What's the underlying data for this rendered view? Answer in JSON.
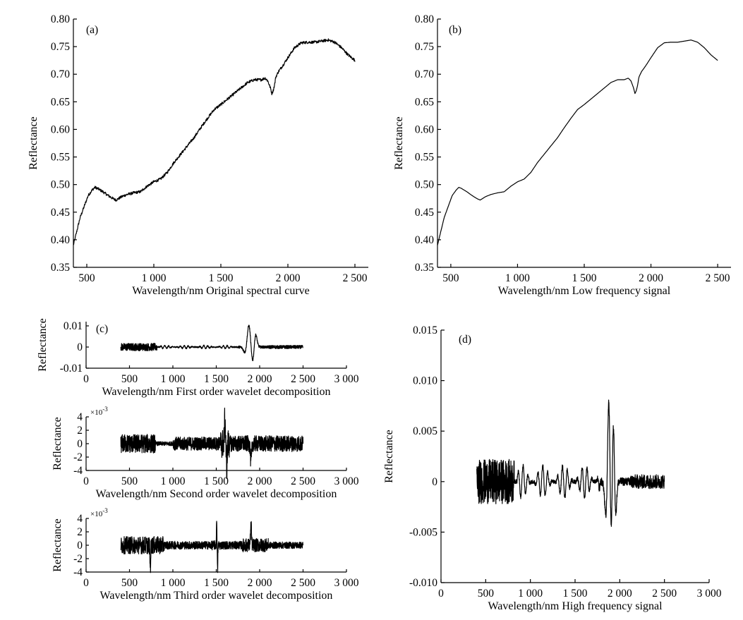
{
  "chart_data": [
    {
      "id": "a",
      "type": "line",
      "panel_label": "(a)",
      "xlabel": "Wavelength/nm Original spectral curve",
      "ylabel": "Reflectance",
      "xlim": [
        400,
        2600
      ],
      "ylim": [
        0.35,
        0.8
      ],
      "xticks": [
        500,
        1000,
        1500,
        2000,
        2500
      ],
      "xtick_labels": [
        "500",
        "1 000",
        "1 500",
        "2 000",
        "2 500"
      ],
      "yticks": [
        0.35,
        0.4,
        0.45,
        0.5,
        0.55,
        0.6,
        0.65,
        0.7,
        0.75,
        0.8
      ],
      "ytick_labels": [
        "0.35",
        "0.40",
        "0.45",
        "0.50",
        "0.55",
        "0.60",
        "0.65",
        "0.70",
        "0.75",
        "0.80"
      ],
      "noise": 0.0025,
      "series": [
        {
          "x": [
            400,
            420,
            450,
            480,
            510,
            540,
            560,
            580,
            620,
            660,
            700,
            720,
            760,
            800,
            850,
            900,
            950,
            1000,
            1050,
            1100,
            1150,
            1200,
            1250,
            1300,
            1350,
            1400,
            1450,
            1500,
            1550,
            1600,
            1650,
            1700,
            1750,
            1800,
            1830,
            1850,
            1870,
            1880,
            1890,
            1900,
            1910,
            1930,
            1960,
            2000,
            2050,
            2100,
            2150,
            2200,
            2250,
            2300,
            2350,
            2400,
            2450,
            2500
          ],
          "y": [
            0.39,
            0.41,
            0.44,
            0.46,
            0.48,
            0.49,
            0.495,
            0.493,
            0.487,
            0.48,
            0.474,
            0.472,
            0.478,
            0.482,
            0.485,
            0.487,
            0.497,
            0.505,
            0.51,
            0.522,
            0.54,
            0.555,
            0.57,
            0.585,
            0.603,
            0.62,
            0.636,
            0.645,
            0.655,
            0.665,
            0.675,
            0.685,
            0.69,
            0.69,
            0.693,
            0.688,
            0.675,
            0.665,
            0.67,
            0.68,
            0.695,
            0.705,
            0.715,
            0.73,
            0.748,
            0.757,
            0.758,
            0.758,
            0.76,
            0.762,
            0.758,
            0.748,
            0.735,
            0.725
          ]
        }
      ]
    },
    {
      "id": "b",
      "type": "line",
      "panel_label": "(b)",
      "xlabel": "Wavelength/nm Low frequency signal",
      "ylabel": "Reflectance",
      "xlim": [
        400,
        2600
      ],
      "ylim": [
        0.35,
        0.8
      ],
      "xticks": [
        500,
        1000,
        1500,
        2000,
        2500
      ],
      "xtick_labels": [
        "500",
        "1 000",
        "1 500",
        "2 000",
        "2 500"
      ],
      "yticks": [
        0.35,
        0.4,
        0.45,
        0.5,
        0.55,
        0.6,
        0.65,
        0.7,
        0.75,
        0.8
      ],
      "ytick_labels": [
        "0.35",
        "0.40",
        "0.45",
        "0.50",
        "0.55",
        "0.60",
        "0.65",
        "0.70",
        "0.75",
        "0.80"
      ],
      "noise": 0.0,
      "series": [
        {
          "x": [
            400,
            420,
            450,
            480,
            510,
            540,
            560,
            580,
            620,
            660,
            700,
            720,
            760,
            800,
            850,
            900,
            950,
            1000,
            1050,
            1100,
            1150,
            1200,
            1250,
            1300,
            1350,
            1400,
            1450,
            1500,
            1550,
            1600,
            1650,
            1700,
            1750,
            1800,
            1830,
            1850,
            1870,
            1880,
            1890,
            1900,
            1910,
            1930,
            1960,
            2000,
            2050,
            2100,
            2150,
            2200,
            2250,
            2300,
            2350,
            2400,
            2450,
            2500
          ],
          "y": [
            0.39,
            0.41,
            0.44,
            0.46,
            0.48,
            0.49,
            0.495,
            0.493,
            0.487,
            0.48,
            0.474,
            0.472,
            0.478,
            0.482,
            0.485,
            0.487,
            0.497,
            0.505,
            0.51,
            0.522,
            0.54,
            0.555,
            0.57,
            0.585,
            0.603,
            0.62,
            0.636,
            0.645,
            0.655,
            0.665,
            0.675,
            0.685,
            0.69,
            0.69,
            0.693,
            0.688,
            0.675,
            0.665,
            0.67,
            0.68,
            0.695,
            0.705,
            0.715,
            0.73,
            0.748,
            0.757,
            0.758,
            0.758,
            0.76,
            0.762,
            0.758,
            0.748,
            0.735,
            0.725
          ]
        }
      ]
    },
    {
      "id": "c1",
      "type": "line",
      "panel_label": "(c)",
      "xlabel": "Wavelength/nm First order wavelet decomposition",
      "ylabel": "Reflectance",
      "xlim": [
        0,
        3000
      ],
      "ylim": [
        -0.01,
        0.012
      ],
      "xticks": [
        0,
        500,
        1000,
        1500,
        2000,
        2500,
        3000
      ],
      "xtick_labels": [
        "0",
        "500",
        "1 000",
        "1 500",
        "2 000",
        "2 500",
        "3 000"
      ],
      "yticks": [
        -0.01,
        0,
        0.01
      ],
      "ytick_labels": [
        "-0.01",
        "0",
        "0.01"
      ],
      "x_range": [
        400,
        2500
      ],
      "noise_bands": [
        [
          400,
          820,
          0.0018
        ],
        [
          820,
          1750,
          0.0003
        ],
        [
          1750,
          2100,
          0.0006
        ],
        [
          2100,
          2500,
          0.0008
        ]
      ],
      "bursts": [
        [
          1875,
          0.0115,
          30
        ],
        [
          1920,
          -0.009,
          26
        ],
        [
          1950,
          0.0075,
          24
        ],
        [
          1840,
          -0.004,
          30
        ]
      ],
      "waves": [
        [
          850,
          1750,
          0.0007,
          45
        ]
      ]
    },
    {
      "id": "c2",
      "type": "line",
      "xlabel": "Wavelength/nm Second order wavelet decomposition",
      "ylabel": "Reflectance",
      "exponent": "×10-3",
      "xlim": [
        0,
        3000
      ],
      "ylim": [
        -4,
        4
      ],
      "xticks": [
        0,
        500,
        1000,
        1500,
        2000,
        2500,
        3000
      ],
      "xtick_labels": [
        "0",
        "500",
        "1 000",
        "1 500",
        "2 000",
        "2 500",
        "3 000"
      ],
      "yticks": [
        -4,
        -2,
        0,
        2,
        4
      ],
      "ytick_labels": [
        "-4",
        "-2",
        "0",
        "2",
        "4"
      ],
      "x_range": [
        400,
        2500
      ],
      "noise_bands": [
        [
          400,
          800,
          1.4
        ],
        [
          800,
          1000,
          0.3
        ],
        [
          1000,
          1550,
          1.0
        ],
        [
          1550,
          1650,
          2.2
        ],
        [
          1650,
          2500,
          1.2
        ]
      ],
      "bursts": [
        [
          1600,
          3.6,
          8
        ],
        [
          1620,
          -3.4,
          8
        ],
        [
          1900,
          -2.8,
          10
        ]
      ],
      "waves": []
    },
    {
      "id": "c3",
      "type": "line",
      "xlabel": "Wavelength/nm Third order wavelet decomposition",
      "ylabel": "Reflectance",
      "exponent": "×10-3",
      "xlim": [
        0,
        3000
      ],
      "ylim": [
        -4,
        4
      ],
      "xticks": [
        0,
        500,
        1000,
        1500,
        2000,
        2500,
        3000
      ],
      "xtick_labels": [
        "0",
        "500",
        "1 000",
        "1 500",
        "2 000",
        "2 500",
        "3 000"
      ],
      "yticks": [
        -4,
        -2,
        0,
        2,
        4
      ],
      "ytick_labels": [
        "-4",
        "-2",
        "0",
        "2",
        "4"
      ],
      "x_range": [
        400,
        2500
      ],
      "noise_bands": [
        [
          400,
          900,
          1.3
        ],
        [
          900,
          1450,
          0.6
        ],
        [
          1450,
          1550,
          0.7
        ],
        [
          1550,
          1800,
          0.6
        ],
        [
          1800,
          2100,
          1.0
        ],
        [
          2100,
          2500,
          0.5
        ]
      ],
      "bursts": [
        [
          1505,
          3.8,
          4
        ],
        [
          1515,
          -3.9,
          4
        ],
        [
          1900,
          3.0,
          8
        ],
        [
          740,
          -3.2,
          6
        ]
      ],
      "waves": []
    },
    {
      "id": "d",
      "type": "line",
      "panel_label": "(d)",
      "xlabel": "Wavelength/nm High frequency signal",
      "ylabel": "Reflectance",
      "xlim": [
        0,
        3000
      ],
      "ylim": [
        -0.01,
        0.015
      ],
      "xticks": [
        0,
        500,
        1000,
        1500,
        2000,
        2500,
        3000
      ],
      "xtick_labels": [
        "0",
        "500",
        "1 000",
        "1 500",
        "2 000",
        "2 500",
        "3 000"
      ],
      "yticks": [
        -0.01,
        -0.005,
        0,
        0.005,
        0.01,
        0.015
      ],
      "ytick_labels": [
        "-0.010",
        "-0.005",
        "0",
        "0.005",
        "0.010",
        "0.015"
      ],
      "x_range": [
        400,
        2500
      ],
      "noise_bands": [
        [
          400,
          820,
          0.0022
        ],
        [
          820,
          1750,
          0.0002
        ],
        [
          1750,
          2100,
          0.0004
        ],
        [
          2100,
          2500,
          0.0007
        ]
      ],
      "bursts": [
        [
          1880,
          0.0115,
          22
        ],
        [
          1900,
          -0.009,
          20
        ],
        [
          1930,
          0.0076,
          18
        ],
        [
          1950,
          -0.0045,
          18
        ],
        [
          1850,
          -0.0045,
          22
        ]
      ],
      "waves": [
        [
          850,
          1780,
          0.0016,
          55
        ]
      ]
    }
  ]
}
